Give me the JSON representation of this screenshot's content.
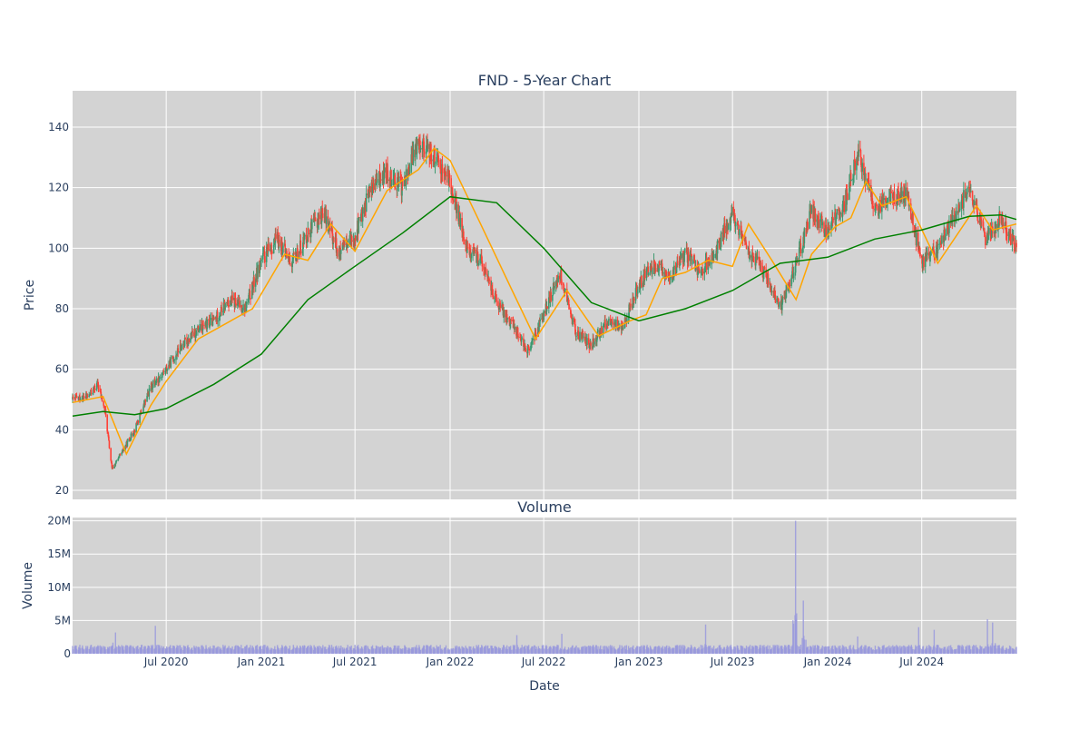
{
  "chart_data": [
    {
      "type": "candlestick",
      "title": "FND - 5-Year Chart",
      "ylabel": "Price",
      "ylim": [
        17,
        152
      ],
      "yticks": [
        20,
        40,
        60,
        80,
        100,
        120,
        140
      ],
      "xlim": [
        "2020-01-02",
        "2024-12-31"
      ],
      "grid": true,
      "colors": {
        "increasing": "#3d9970",
        "decreasing": "#ff4136",
        "ma_short": "#ffa500",
        "ma_long": "#008000",
        "background": "#d3d3d3"
      },
      "price_path": [
        [
          "2020-01-02",
          50
        ],
        [
          "2020-02-01",
          51
        ],
        [
          "2020-02-20",
          55
        ],
        [
          "2020-03-05",
          46
        ],
        [
          "2020-03-18",
          27
        ],
        [
          "2020-04-05",
          32
        ],
        [
          "2020-05-01",
          40
        ],
        [
          "2020-06-01",
          54
        ],
        [
          "2020-07-01",
          60
        ],
        [
          "2020-08-01",
          68
        ],
        [
          "2020-09-01",
          73
        ],
        [
          "2020-10-01",
          76
        ],
        [
          "2020-11-01",
          83
        ],
        [
          "2020-12-01",
          80
        ],
        [
          "2021-01-01",
          96
        ],
        [
          "2021-02-01",
          103
        ],
        [
          "2021-03-01",
          95
        ],
        [
          "2021-04-01",
          105
        ],
        [
          "2021-05-01",
          112
        ],
        [
          "2021-06-01",
          98
        ],
        [
          "2021-07-01",
          104
        ],
        [
          "2021-08-01",
          120
        ],
        [
          "2021-09-01",
          125
        ],
        [
          "2021-10-01",
          120
        ],
        [
          "2021-11-01",
          136
        ],
        [
          "2021-12-01",
          130
        ],
        [
          "2022-01-01",
          122
        ],
        [
          "2022-02-01",
          100
        ],
        [
          "2022-03-01",
          96
        ],
        [
          "2022-04-01",
          82
        ],
        [
          "2022-05-01",
          75
        ],
        [
          "2022-06-01",
          66
        ],
        [
          "2022-07-01",
          78
        ],
        [
          "2022-08-01",
          92
        ],
        [
          "2022-09-01",
          72
        ],
        [
          "2022-10-01",
          68
        ],
        [
          "2022-11-01",
          76
        ],
        [
          "2022-12-01",
          74
        ],
        [
          "2023-01-01",
          88
        ],
        [
          "2023-02-01",
          95
        ],
        [
          "2023-03-01",
          90
        ],
        [
          "2023-04-01",
          98
        ],
        [
          "2023-05-01",
          92
        ],
        [
          "2023-06-01",
          100
        ],
        [
          "2023-07-01",
          112
        ],
        [
          "2023-08-01",
          99
        ],
        [
          "2023-09-01",
          92
        ],
        [
          "2023-10-01",
          80
        ],
        [
          "2023-11-01",
          95
        ],
        [
          "2023-12-01",
          112
        ],
        [
          "2024-01-01",
          106
        ],
        [
          "2024-02-01",
          114
        ],
        [
          "2024-03-01",
          132
        ],
        [
          "2024-04-01",
          112
        ],
        [
          "2024-05-01",
          117
        ],
        [
          "2024-06-01",
          118
        ],
        [
          "2024-07-01",
          95
        ],
        [
          "2024-08-01",
          100
        ],
        [
          "2024-09-01",
          110
        ],
        [
          "2024-10-01",
          120
        ],
        [
          "2024-11-01",
          103
        ],
        [
          "2024-12-01",
          110
        ],
        [
          "2024-12-31",
          100
        ]
      ],
      "ma_short": [
        [
          "2020-01-02",
          49
        ],
        [
          "2020-03-01",
          51
        ],
        [
          "2020-04-15",
          32
        ],
        [
          "2020-06-01",
          48
        ],
        [
          "2020-07-01",
          56
        ],
        [
          "2020-09-01",
          70
        ],
        [
          "2020-12-15",
          80
        ],
        [
          "2021-02-15",
          98
        ],
        [
          "2021-04-01",
          96
        ],
        [
          "2021-05-15",
          108
        ],
        [
          "2021-07-01",
          99
        ],
        [
          "2021-09-01",
          119
        ],
        [
          "2021-11-01",
          126
        ],
        [
          "2021-12-01",
          133
        ],
        [
          "2022-01-01",
          129
        ],
        [
          "2022-03-01",
          108
        ],
        [
          "2022-05-01",
          86
        ],
        [
          "2022-06-15",
          70
        ],
        [
          "2022-08-15",
          86
        ],
        [
          "2022-10-15",
          71
        ],
        [
          "2022-12-15",
          76
        ],
        [
          "2023-01-15",
          78
        ],
        [
          "2023-02-15",
          90
        ],
        [
          "2023-04-01",
          92
        ],
        [
          "2023-05-15",
          96
        ],
        [
          "2023-07-01",
          94
        ],
        [
          "2023-08-01",
          108
        ],
        [
          "2023-09-15",
          96
        ],
        [
          "2023-11-01",
          83
        ],
        [
          "2023-12-01",
          98
        ],
        [
          "2024-01-15",
          107
        ],
        [
          "2024-02-15",
          110
        ],
        [
          "2024-03-15",
          122
        ],
        [
          "2024-04-15",
          114
        ],
        [
          "2024-06-01",
          117
        ],
        [
          "2024-08-01",
          95
        ],
        [
          "2024-10-15",
          114
        ],
        [
          "2024-11-15",
          106
        ],
        [
          "2024-12-31",
          108
        ]
      ],
      "ma_long": [
        [
          "2020-01-02",
          44.5
        ],
        [
          "2020-03-01",
          46
        ],
        [
          "2020-05-01",
          45
        ],
        [
          "2020-07-01",
          47
        ],
        [
          "2020-10-01",
          55
        ],
        [
          "2021-01-01",
          65
        ],
        [
          "2021-04-01",
          83
        ],
        [
          "2021-07-01",
          94
        ],
        [
          "2021-10-01",
          105
        ],
        [
          "2022-01-01",
          117
        ],
        [
          "2022-04-01",
          115
        ],
        [
          "2022-07-01",
          100
        ],
        [
          "2022-10-01",
          82
        ],
        [
          "2023-01-01",
          76
        ],
        [
          "2023-04-01",
          80
        ],
        [
          "2023-07-01",
          86
        ],
        [
          "2023-10-01",
          95
        ],
        [
          "2024-01-01",
          97
        ],
        [
          "2024-04-01",
          103
        ],
        [
          "2024-07-01",
          106
        ],
        [
          "2024-10-01",
          110.5
        ],
        [
          "2024-12-01",
          111
        ],
        [
          "2024-12-31",
          109.5
        ]
      ]
    },
    {
      "type": "bar",
      "title": "Volume",
      "ylabel": "Volume",
      "xlabel": "Date",
      "ylim": [
        0,
        20500000
      ],
      "yticks": [
        0,
        5000000,
        10000000,
        15000000,
        20000000
      ],
      "ytick_labels": [
        "0",
        "5M",
        "10M",
        "15M",
        "20M"
      ],
      "xticks": [
        "2020-07-01",
        "2021-01-01",
        "2021-07-01",
        "2022-01-01",
        "2022-07-01",
        "2023-01-01",
        "2023-07-01",
        "2024-01-01",
        "2024-07-01"
      ],
      "xtick_labels": [
        "Jul 2020",
        "Jan 2021",
        "Jul 2021",
        "Jan 2022",
        "Jul 2022",
        "Jan 2023",
        "Jul 2023",
        "Jan 2024",
        "Jul 2024"
      ],
      "colors": {
        "bar": "#9999dd"
      },
      "baseline_volume": 1000000,
      "spikes": [
        [
          "2020-03-15",
          5000000
        ],
        [
          "2020-03-25",
          3200000
        ],
        [
          "2020-06-10",
          4200000
        ],
        [
          "2020-09-05",
          2500000
        ],
        [
          "2022-05-10",
          2800000
        ],
        [
          "2022-08-05",
          3000000
        ],
        [
          "2022-11-05",
          3100000
        ],
        [
          "2023-05-10",
          4400000
        ],
        [
          "2023-10-31",
          20000000
        ],
        [
          "2023-11-15",
          8000000
        ],
        [
          "2023-11-25",
          3500000
        ],
        [
          "2024-02-28",
          2600000
        ],
        [
          "2024-06-25",
          4000000
        ],
        [
          "2024-07-25",
          3600000
        ],
        [
          "2024-11-05",
          5200000
        ],
        [
          "2024-11-15",
          4700000
        ]
      ]
    }
  ]
}
